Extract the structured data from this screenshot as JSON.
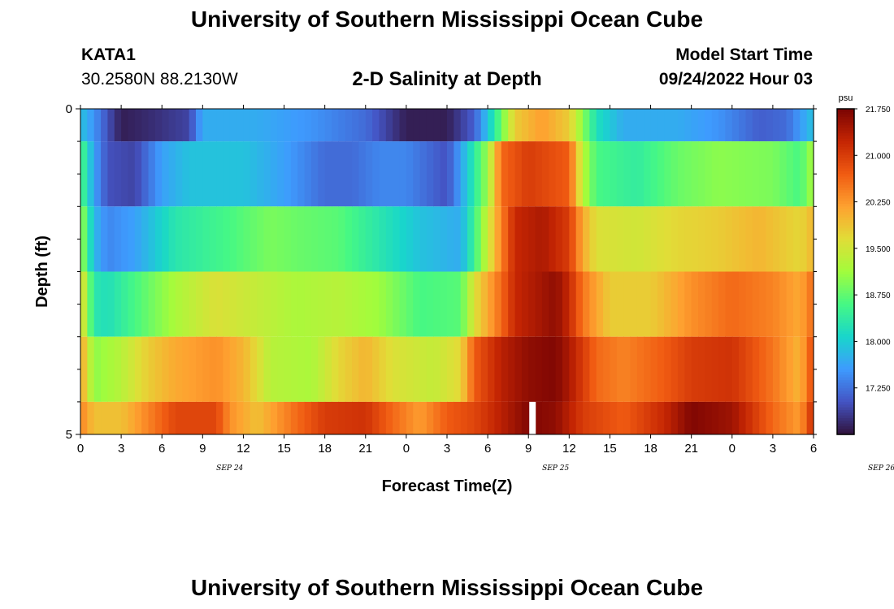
{
  "header": {
    "title": "University of Southern Mississippi Ocean Cube",
    "station_id": "KATA1",
    "coordinates": "30.2580N  88.2130W",
    "chart_title": "2-D Salinity at Depth",
    "model_start_label": "Model Start Time",
    "model_start_value": "09/24/2022 Hour 03"
  },
  "footer": {
    "title": "University of Southern Mississippi Ocean Cube"
  },
  "chart_data": {
    "type": "heatmap",
    "title": "2-D Salinity at Depth",
    "xlabel": "Forecast Time(Z)",
    "ylabel": "Depth (ft)",
    "ylim": [
      0,
      5
    ],
    "y_tick_labels": [
      "0",
      "5"
    ],
    "x_tick_labels": [
      "0",
      "3",
      "6",
      "9",
      "12",
      "15",
      "18",
      "21",
      "0",
      "3",
      "6",
      "9",
      "12",
      "15",
      "18",
      "21",
      "0",
      "3",
      "6"
    ],
    "date_labels": [
      {
        "label": "SEP 24",
        "hour_index": 11
      },
      {
        "label": "SEP 25",
        "hour_index": 35
      },
      {
        "label": "SEP 26",
        "hour_index": 59
      }
    ],
    "hours_start": 0,
    "hours_end": 54,
    "missing_hour": 33,
    "colorbar": {
      "unit": "psu",
      "min": 16.5,
      "max": 21.75,
      "tick_labels": [
        "21.750",
        "21.000",
        "20.250",
        "19.500",
        "18.750",
        "18.000",
        "17.250"
      ],
      "tick_values": [
        21.75,
        21.0,
        20.25,
        19.5,
        18.75,
        18.0,
        17.25
      ],
      "colors": [
        "#30123b",
        "#4454c4",
        "#3e9bfe",
        "#18d6cb",
        "#46f884",
        "#a2fc3c",
        "#e1dd37",
        "#fea130",
        "#f05b12",
        "#c42503",
        "#7a0403"
      ]
    },
    "depth_layers": [
      {
        "depth": 0,
        "keys": [
          [
            0,
            17.9
          ],
          [
            1,
            17.5
          ],
          [
            2,
            17.0
          ],
          [
            3,
            16.6
          ],
          [
            5,
            16.7
          ],
          [
            8,
            16.9
          ],
          [
            9,
            17.7
          ],
          [
            13,
            17.7
          ],
          [
            17,
            17.5
          ],
          [
            21,
            17.2
          ],
          [
            24,
            16.6
          ],
          [
            27,
            16.6
          ],
          [
            29,
            17.1
          ],
          [
            30,
            17.9
          ],
          [
            31,
            18.8
          ],
          [
            32,
            19.8
          ],
          [
            34,
            20.2
          ],
          [
            36,
            19.8
          ],
          [
            37,
            19.0
          ],
          [
            38,
            18.2
          ],
          [
            40,
            17.7
          ],
          [
            44,
            17.7
          ],
          [
            47,
            17.5
          ],
          [
            50,
            17.1
          ],
          [
            52,
            17.2
          ],
          [
            54,
            17.9
          ]
        ]
      },
      {
        "depth": 1,
        "keys": [
          [
            0,
            18.7
          ],
          [
            1,
            17.6
          ],
          [
            2,
            17.0
          ],
          [
            4,
            16.9
          ],
          [
            6,
            17.6
          ],
          [
            8,
            17.9
          ],
          [
            12,
            17.9
          ],
          [
            15,
            17.6
          ],
          [
            18,
            17.2
          ],
          [
            20,
            17.2
          ],
          [
            22,
            17.4
          ],
          [
            24,
            17.4
          ],
          [
            27,
            17.0
          ],
          [
            28,
            17.6
          ],
          [
            30,
            19.1
          ],
          [
            31,
            20.6
          ],
          [
            33,
            21.0
          ],
          [
            36,
            20.7
          ],
          [
            37,
            19.3
          ],
          [
            38,
            18.6
          ],
          [
            41,
            18.4
          ],
          [
            44,
            18.8
          ],
          [
            47,
            19.0
          ],
          [
            51,
            18.9
          ],
          [
            53,
            18.6
          ],
          [
            54,
            19.2
          ]
        ]
      },
      {
        "depth": 2,
        "keys": [
          [
            0,
            19.2
          ],
          [
            1,
            17.8
          ],
          [
            2,
            17.4
          ],
          [
            4,
            17.6
          ],
          [
            7,
            18.3
          ],
          [
            11,
            18.6
          ],
          [
            14,
            18.9
          ],
          [
            16,
            18.8
          ],
          [
            19,
            18.7
          ],
          [
            22,
            18.3
          ],
          [
            25,
            17.9
          ],
          [
            28,
            17.7
          ],
          [
            29,
            18.5
          ],
          [
            31,
            20.4
          ],
          [
            32,
            21.2
          ],
          [
            34,
            21.4
          ],
          [
            36,
            21.0
          ],
          [
            37,
            20.1
          ],
          [
            38,
            19.6
          ],
          [
            41,
            19.5
          ],
          [
            44,
            19.7
          ],
          [
            47,
            19.8
          ],
          [
            50,
            20.0
          ],
          [
            53,
            19.7
          ],
          [
            54,
            20.0
          ]
        ]
      },
      {
        "depth": 3,
        "keys": [
          [
            0,
            19.8
          ],
          [
            1,
            18.3
          ],
          [
            2,
            18.2
          ],
          [
            4,
            18.6
          ],
          [
            7,
            19.2
          ],
          [
            10,
            19.6
          ],
          [
            13,
            19.4
          ],
          [
            16,
            19.2
          ],
          [
            19,
            19.3
          ],
          [
            22,
            19.1
          ],
          [
            25,
            18.6
          ],
          [
            28,
            18.7
          ],
          [
            29,
            19.6
          ],
          [
            31,
            20.6
          ],
          [
            32,
            21.2
          ],
          [
            35,
            21.6
          ],
          [
            36,
            21.2
          ],
          [
            37,
            20.5
          ],
          [
            39,
            19.8
          ],
          [
            42,
            19.8
          ],
          [
            45,
            20.3
          ],
          [
            48,
            20.6
          ],
          [
            51,
            20.4
          ],
          [
            53,
            20.1
          ],
          [
            54,
            20.6
          ]
        ]
      },
      {
        "depth": 4,
        "keys": [
          [
            0,
            20.2
          ],
          [
            1,
            19.0
          ],
          [
            3,
            19.3
          ],
          [
            5,
            19.8
          ],
          [
            7,
            20.1
          ],
          [
            10,
            20.3
          ],
          [
            12,
            20.0
          ],
          [
            14,
            19.3
          ],
          [
            17,
            19.2
          ],
          [
            19,
            19.7
          ],
          [
            21,
            20.0
          ],
          [
            23,
            19.6
          ],
          [
            26,
            19.4
          ],
          [
            28,
            19.7
          ],
          [
            29,
            20.7
          ],
          [
            31,
            21.3
          ],
          [
            33,
            21.6
          ],
          [
            35,
            21.7
          ],
          [
            36,
            21.4
          ],
          [
            38,
            20.6
          ],
          [
            40,
            20.4
          ],
          [
            43,
            20.7
          ],
          [
            45,
            21.0
          ],
          [
            48,
            21.1
          ],
          [
            51,
            20.5
          ],
          [
            53,
            20.0
          ],
          [
            54,
            20.9
          ]
        ]
      },
      {
        "depth": 5,
        "keys": [
          [
            0,
            20.4
          ],
          [
            1,
            19.9
          ],
          [
            3,
            19.9
          ],
          [
            5,
            20.4
          ],
          [
            7,
            20.9
          ],
          [
            10,
            20.9
          ],
          [
            11,
            20.3
          ],
          [
            13,
            19.9
          ],
          [
            16,
            20.6
          ],
          [
            18,
            21.0
          ],
          [
            21,
            21.1
          ],
          [
            23,
            20.6
          ],
          [
            25,
            20.2
          ],
          [
            27,
            20.7
          ],
          [
            29,
            20.9
          ],
          [
            31,
            21.3
          ],
          [
            33,
            21.7
          ],
          [
            35,
            21.6
          ],
          [
            37,
            21.0
          ],
          [
            40,
            20.7
          ],
          [
            43,
            21.2
          ],
          [
            45,
            21.7
          ],
          [
            48,
            21.5
          ],
          [
            51,
            20.6
          ],
          [
            53,
            20.2
          ],
          [
            54,
            21.2
          ]
        ]
      }
    ]
  }
}
